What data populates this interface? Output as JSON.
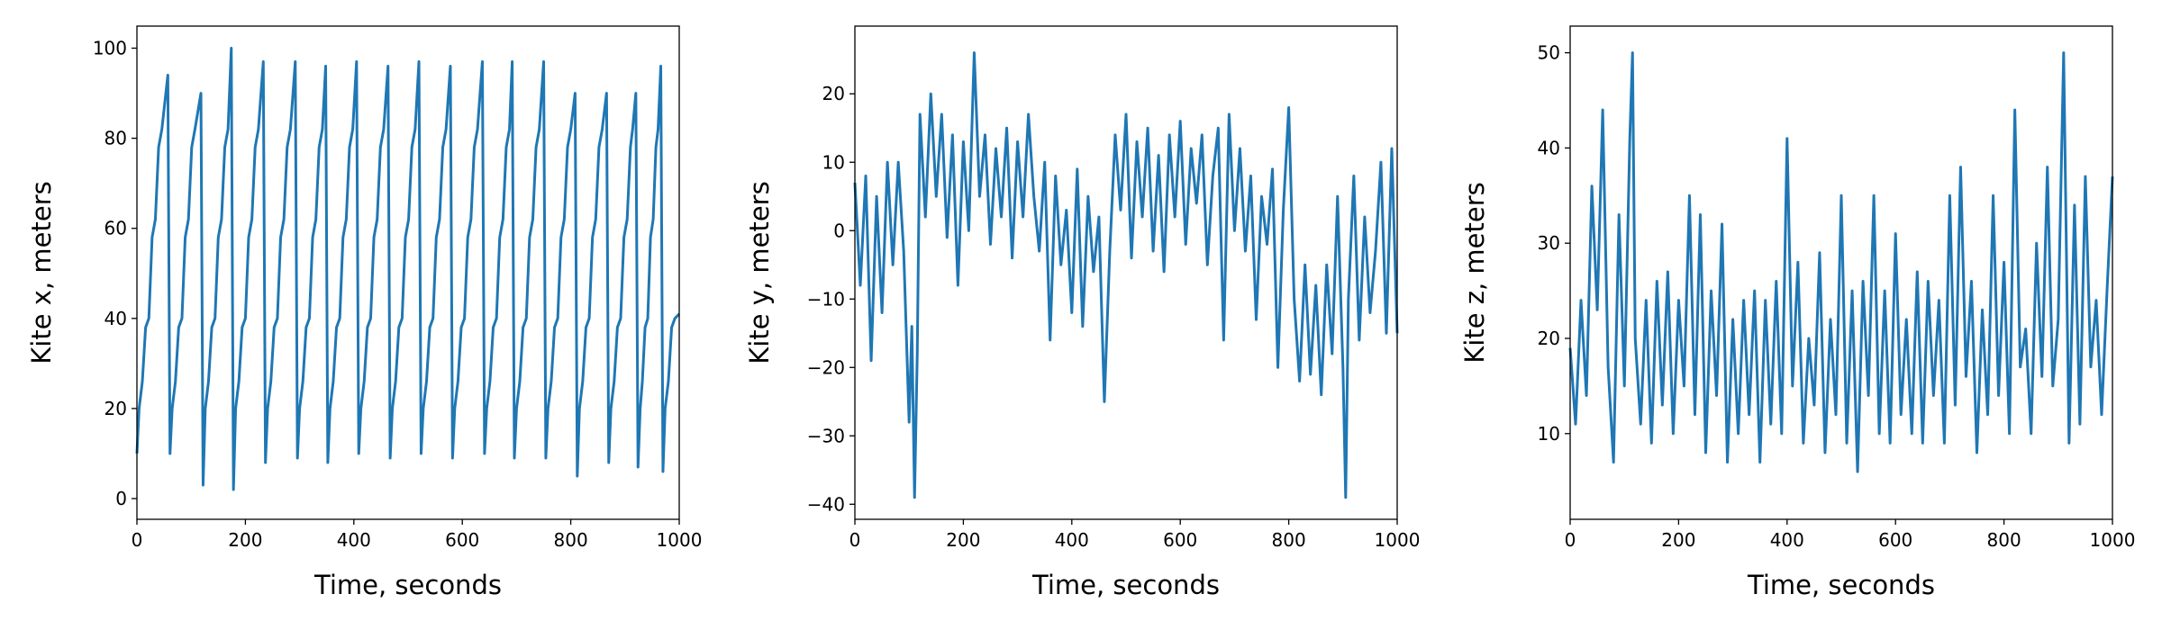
{
  "chart_data": [
    {
      "type": "line",
      "color": "#1f77b4",
      "xlabel": "Time, seconds",
      "ylabel": "Kite x, meters",
      "xlim": [
        0,
        1000
      ],
      "ylim": [
        -4.6,
        104.9
      ],
      "xticks": [
        0,
        200,
        400,
        600,
        800,
        1000
      ],
      "yticks": [
        0,
        20,
        40,
        60,
        80,
        100
      ],
      "x": [
        0,
        4,
        10,
        16,
        22,
        28,
        34,
        40,
        46,
        57,
        61,
        65,
        71,
        77,
        83,
        89,
        95,
        101,
        107,
        118,
        122,
        126,
        132,
        138,
        144,
        150,
        156,
        162,
        168,
        174,
        178,
        182,
        188,
        194,
        200,
        206,
        212,
        218,
        224,
        233,
        237,
        241,
        247,
        253,
        259,
        265,
        271,
        277,
        283,
        292,
        296,
        300,
        306,
        312,
        318,
        324,
        330,
        336,
        342,
        348,
        352,
        356,
        362,
        368,
        374,
        380,
        386,
        392,
        398,
        405,
        409,
        413,
        419,
        425,
        431,
        437,
        443,
        449,
        455,
        463,
        467,
        471,
        477,
        483,
        489,
        495,
        501,
        507,
        513,
        520,
        524,
        528,
        534,
        540,
        546,
        552,
        558,
        564,
        570,
        578,
        582,
        586,
        592,
        598,
        604,
        610,
        616,
        622,
        628,
        637,
        641,
        645,
        651,
        657,
        663,
        669,
        675,
        681,
        687,
        692,
        696,
        700,
        706,
        712,
        718,
        724,
        730,
        736,
        742,
        750,
        754,
        758,
        764,
        770,
        776,
        782,
        788,
        794,
        800,
        808,
        812,
        816,
        822,
        828,
        834,
        840,
        846,
        852,
        858,
        866,
        870,
        874,
        880,
        886,
        892,
        898,
        904,
        910,
        914,
        920,
        924,
        928,
        932,
        937,
        942,
        947,
        952,
        957,
        961,
        966,
        970,
        974,
        980,
        986,
        992,
        1000
      ],
      "values": [
        10,
        20,
        26,
        38,
        40,
        58,
        62,
        78,
        82,
        94,
        10,
        20,
        26,
        38,
        40,
        58,
        62,
        78,
        82,
        90,
        3,
        20,
        26,
        38,
        40,
        58,
        62,
        78,
        82,
        100,
        2,
        20,
        26,
        38,
        40,
        58,
        62,
        78,
        82,
        97,
        8,
        20,
        26,
        38,
        40,
        58,
        62,
        78,
        82,
        97,
        9,
        20,
        26,
        38,
        40,
        58,
        62,
        78,
        82,
        96,
        8,
        20,
        26,
        38,
        40,
        58,
        62,
        78,
        82,
        97,
        10,
        20,
        26,
        38,
        40,
        58,
        62,
        78,
        82,
        96,
        9,
        20,
        26,
        38,
        40,
        58,
        62,
        78,
        82,
        97,
        10,
        20,
        26,
        38,
        40,
        58,
        62,
        78,
        82,
        96,
        9,
        20,
        26,
        38,
        40,
        58,
        62,
        78,
        82,
        97,
        10,
        20,
        26,
        38,
        40,
        58,
        62,
        78,
        82,
        97,
        9,
        20,
        26,
        38,
        40,
        58,
        62,
        78,
        82,
        97,
        9,
        20,
        26,
        38,
        40,
        58,
        62,
        78,
        82,
        90,
        5,
        20,
        26,
        38,
        40,
        58,
        62,
        78,
        82,
        90,
        8,
        20,
        26,
        38,
        40,
        58,
        62,
        78,
        82,
        90,
        7,
        20,
        26,
        38,
        40,
        58,
        62,
        78,
        82,
        96,
        6,
        20,
        26,
        38,
        40,
        41
      ]
    },
    {
      "type": "line",
      "color": "#1f77b4",
      "xlabel": "Time, seconds",
      "ylabel": "Kite y, meters",
      "xlim": [
        0,
        1000
      ],
      "ylim": [
        -42.2,
        29.9
      ],
      "xticks": [
        0,
        200,
        400,
        600,
        800,
        1000
      ],
      "yticks": [
        {
          "value": -40,
          "label": "−40"
        },
        {
          "value": -30,
          "label": "−30"
        },
        {
          "value": -20,
          "label": "−20"
        },
        {
          "value": -10,
          "label": "−10"
        },
        0,
        10,
        20
      ],
      "x": [
        0,
        10,
        20,
        30,
        40,
        50,
        60,
        70,
        80,
        90,
        100,
        105,
        110,
        115,
        120,
        130,
        140,
        150,
        160,
        170,
        180,
        190,
        200,
        210,
        220,
        230,
        240,
        250,
        260,
        270,
        280,
        290,
        300,
        310,
        320,
        330,
        340,
        350,
        360,
        370,
        380,
        390,
        400,
        410,
        420,
        430,
        440,
        450,
        460,
        470,
        480,
        490,
        500,
        510,
        520,
        530,
        540,
        550,
        560,
        570,
        580,
        590,
        600,
        610,
        620,
        630,
        640,
        650,
        660,
        670,
        680,
        690,
        700,
        710,
        720,
        730,
        740,
        750,
        760,
        770,
        780,
        790,
        800,
        810,
        820,
        830,
        840,
        850,
        860,
        870,
        880,
        890,
        900,
        905,
        910,
        920,
        930,
        940,
        950,
        960,
        970,
        980,
        990,
        1000
      ],
      "values": [
        7,
        -8,
        8,
        -19,
        5,
        -12,
        10,
        -5,
        10,
        -3,
        -28,
        -14,
        -39,
        -18,
        17,
        2,
        20,
        5,
        17,
        -1,
        14,
        -8,
        13,
        0,
        26,
        5,
        14,
        -2,
        12,
        2,
        15,
        -4,
        13,
        2,
        17,
        5,
        -3,
        10,
        -16,
        8,
        -5,
        3,
        -12,
        9,
        -14,
        5,
        -6,
        2,
        -25,
        -3,
        14,
        3,
        17,
        -4,
        13,
        2,
        15,
        -3,
        11,
        -6,
        14,
        2,
        16,
        -2,
        12,
        4,
        14,
        -5,
        8,
        15,
        -16,
        17,
        0,
        12,
        -3,
        8,
        -13,
        5,
        -2,
        9,
        -20,
        3,
        18,
        -10,
        -22,
        -5,
        -21,
        -8,
        -24,
        -5,
        -18,
        5,
        -20,
        -39,
        -10,
        8,
        -16,
        2,
        -12,
        -3,
        10,
        -15,
        12,
        -15
      ]
    },
    {
      "type": "line",
      "color": "#1f77b4",
      "xlabel": "Time, seconds",
      "ylabel": "Kite z, meters",
      "xlim": [
        0,
        1000
      ],
      "ylim": [
        1.0,
        52.8
      ],
      "xticks": [
        0,
        200,
        400,
        600,
        800,
        1000
      ],
      "yticks": [
        10,
        20,
        30,
        40,
        50
      ],
      "x": [
        0,
        10,
        20,
        30,
        40,
        50,
        60,
        70,
        80,
        90,
        100,
        110,
        115,
        120,
        130,
        140,
        150,
        160,
        170,
        180,
        190,
        200,
        210,
        220,
        230,
        240,
        250,
        260,
        270,
        280,
        290,
        300,
        310,
        320,
        330,
        340,
        350,
        360,
        370,
        380,
        390,
        400,
        410,
        420,
        430,
        440,
        450,
        460,
        470,
        480,
        490,
        500,
        510,
        520,
        530,
        540,
        550,
        560,
        570,
        580,
        590,
        600,
        610,
        620,
        630,
        640,
        650,
        660,
        670,
        680,
        690,
        700,
        710,
        720,
        730,
        740,
        750,
        760,
        770,
        780,
        790,
        800,
        810,
        820,
        830,
        840,
        850,
        860,
        870,
        880,
        890,
        900,
        910,
        920,
        930,
        940,
        950,
        960,
        970,
        980,
        990,
        1000
      ],
      "values": [
        19,
        11,
        24,
        14,
        36,
        23,
        44,
        17,
        7,
        33,
        15,
        41,
        50,
        20,
        11,
        24,
        9,
        26,
        13,
        27,
        10,
        24,
        15,
        35,
        12,
        33,
        8,
        25,
        14,
        32,
        7,
        22,
        10,
        24,
        12,
        25,
        7,
        24,
        11,
        26,
        10,
        41,
        15,
        28,
        9,
        20,
        13,
        29,
        8,
        22,
        12,
        35,
        9,
        25,
        6,
        26,
        14,
        35,
        10,
        25,
        9,
        31,
        12,
        22,
        10,
        27,
        9,
        26,
        14,
        24,
        9,
        35,
        13,
        38,
        16,
        26,
        8,
        23,
        12,
        35,
        14,
        28,
        10,
        44,
        17,
        21,
        10,
        30,
        16,
        38,
        15,
        22,
        50,
        9,
        34,
        11,
        37,
        17,
        24,
        12,
        25,
        37
      ]
    }
  ]
}
